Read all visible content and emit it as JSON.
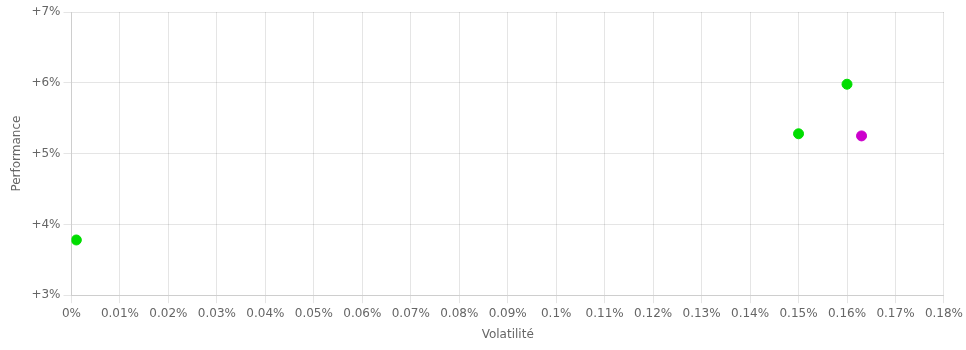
{
  "chart_data": {
    "type": "scatter",
    "x": [
      0.001,
      0.15,
      0.16,
      0.163
    ],
    "values": [
      3.78,
      5.28,
      5.98,
      5.25
    ],
    "colors": [
      "#00dd00",
      "#00dd00",
      "#00dd00",
      "#cc00cc"
    ],
    "xlabel": "Volatilité",
    "ylabel": "Performance",
    "xlim": [
      0.0,
      0.18
    ],
    "ylim": [
      3.0,
      7.0
    ],
    "xticks": [
      {
        "value": 0.0,
        "label": "0%"
      },
      {
        "value": 0.01,
        "label": "0.01%"
      },
      {
        "value": 0.02,
        "label": "0.02%"
      },
      {
        "value": 0.03,
        "label": "0.03%"
      },
      {
        "value": 0.04,
        "label": "0.04%"
      },
      {
        "value": 0.05,
        "label": "0.05%"
      },
      {
        "value": 0.06,
        "label": "0.06%"
      },
      {
        "value": 0.07,
        "label": "0.07%"
      },
      {
        "value": 0.08,
        "label": "0.08%"
      },
      {
        "value": 0.09,
        "label": "0.09%"
      },
      {
        "value": 0.1,
        "label": "0.1%"
      },
      {
        "value": 0.11,
        "label": "0.11%"
      },
      {
        "value": 0.12,
        "label": "0.12%"
      },
      {
        "value": 0.13,
        "label": "0.13%"
      },
      {
        "value": 0.14,
        "label": "0.14%"
      },
      {
        "value": 0.15,
        "label": "0.15%"
      },
      {
        "value": 0.16,
        "label": "0.16%"
      },
      {
        "value": 0.17,
        "label": "0.17%"
      },
      {
        "value": 0.18,
        "label": "0.18%"
      }
    ],
    "yticks": [
      {
        "value": 3.0,
        "label": "+3%"
      },
      {
        "value": 4.0,
        "label": "+4%"
      },
      {
        "value": 5.0,
        "label": "+5%"
      },
      {
        "value": 6.0,
        "label": "+6%"
      },
      {
        "value": 7.0,
        "label": "+7%"
      }
    ],
    "grid": true
  }
}
